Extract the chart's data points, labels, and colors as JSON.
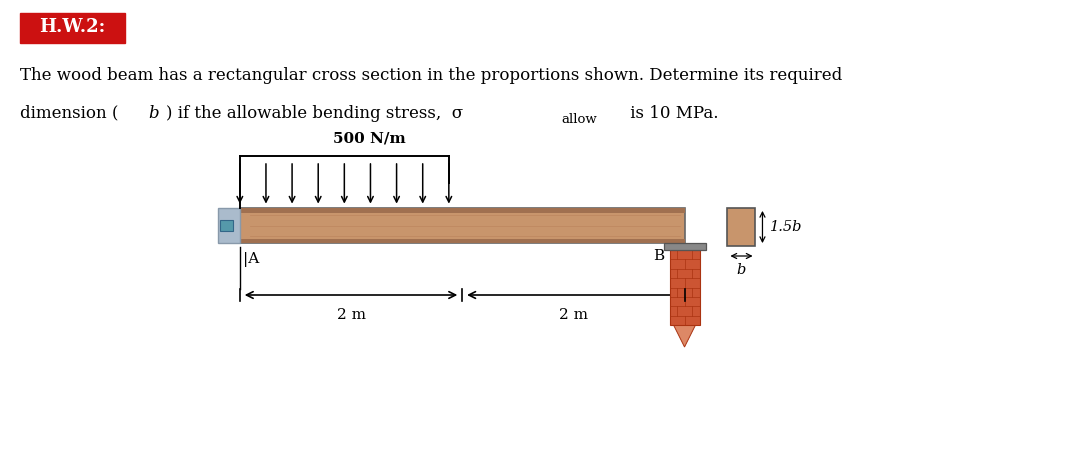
{
  "bg_color": "#ffffff",
  "title_box_color": "#cc1111",
  "title_text": "H.W.2:",
  "title_text_color": "#ffffff",
  "problem_line1": "The wood beam has a rectangular cross section in the proportions shown. Determine its required",
  "problem_line2a": "dimension (",
  "problem_line2b": "b",
  "problem_line2c": ") if the allowable bending stress,  σ",
  "problem_line2d": "allow",
  "problem_line2e": " is 10 MPa.",
  "load_label": "500 N/m",
  "label_A": "A",
  "label_B": "B",
  "dim_label1": "2 m",
  "dim_label2": "2 m",
  "cross_label_h": "1.5b",
  "cross_label_w": "b",
  "beam_color": "#c8956c",
  "beam_top_color": "#a07050",
  "beam_bot_color": "#a07050",
  "wall_left_color": "#aabbcc",
  "wall_left_edge": "#8899aa",
  "brick_color": "#cc5533",
  "brick_edge": "#aa3311",
  "cap_color": "#888888",
  "cap_edge": "#555555",
  "cs_color": "#c8956c",
  "cs_edge": "#555555",
  "arrow_color": "#000000",
  "text_color": "#000000",
  "line_color": "#000000",
  "n_load_arrows": 9,
  "n_brick_cols": 2,
  "n_brick_rows": 8
}
